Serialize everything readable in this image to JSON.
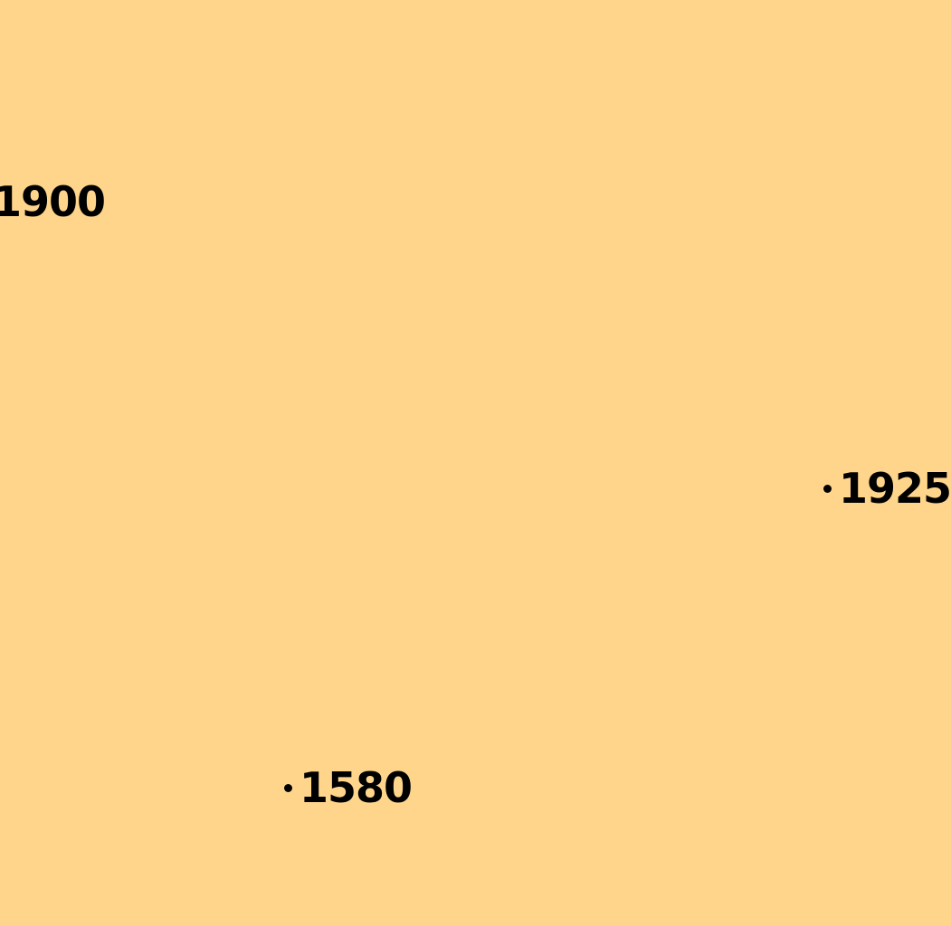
{
  "map": {
    "background_color": "#FFD58C",
    "label_color": "#000000",
    "labels": [
      {
        "text": "1900",
        "marker": false
      },
      {
        "text": "1925",
        "marker": true
      },
      {
        "text": "1580",
        "marker": true
      }
    ]
  }
}
